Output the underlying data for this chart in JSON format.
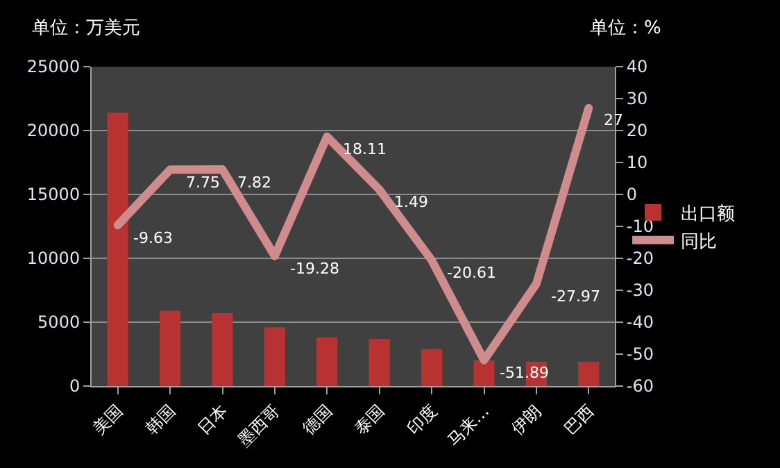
{
  "chart_data": {
    "type": "bar",
    "ylabel": "单位：万美元",
    "y2label": "单位：%",
    "categories": [
      "美国",
      "韩国",
      "日本",
      "墨西哥",
      "德国",
      "泰国",
      "印度",
      "马来…",
      "伊朗",
      "巴西"
    ],
    "series": [
      {
        "name": "出口额",
        "color": "#b83232",
        "values": [
          21400,
          5900,
          5700,
          4600,
          3800,
          3700,
          2900,
          2000,
          1900,
          1900
        ]
      },
      {
        "name": "同比",
        "type": "line",
        "axis": "y2",
        "color": "#d08c8c",
        "values": [
          -9.63,
          7.75,
          7.82,
          -19.28,
          18.11,
          1.49,
          -20.61,
          -51.89,
          -27.97,
          27
        ],
        "value_labels": [
          "-9.63",
          "7.75",
          "7.82",
          "-19.28",
          "18.11",
          "1.49",
          "-20.61",
          "-51.89",
          "-27.97",
          "27"
        ]
      }
    ],
    "ylim": [
      0,
      25000
    ],
    "yticks": [
      0,
      5000,
      10000,
      15000,
      20000,
      25000
    ],
    "y2lim": [
      -60,
      40
    ],
    "y2ticks": [
      -60,
      -50,
      -40,
      -30,
      -20,
      -10,
      0,
      10,
      20,
      30,
      40
    ],
    "grid": "y",
    "legend": "right",
    "marker": "none",
    "line_style": "solid"
  }
}
